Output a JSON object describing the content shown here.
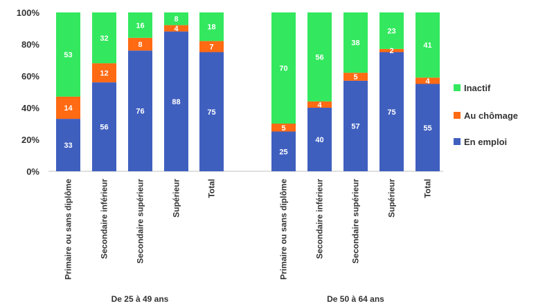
{
  "chart_data": {
    "type": "bar",
    "stacked": true,
    "normalized_percent": true,
    "groups": [
      {
        "label": "De 25 à 49 ans",
        "categories": [
          "Primaire ou sans diplôme",
          "Secondaire inférieur",
          "Secondaire supérieur",
          "Supérieur",
          "Total"
        ],
        "en_emploi": [
          33,
          56,
          76,
          88,
          75
        ],
        "au_chomage": [
          14,
          12,
          8,
          4,
          7
        ],
        "inactif": [
          53,
          32,
          16,
          8,
          18
        ]
      },
      {
        "label": "De 50 à 64 ans",
        "categories": [
          "Primaire ou sans diplôme",
          "Secondaire inférieur",
          "Secondaire supérieur",
          "Supérieur",
          "Total"
        ],
        "en_emploi": [
          25,
          40,
          57,
          75,
          55
        ],
        "au_chomage": [
          5,
          4,
          5,
          2,
          4
        ],
        "inactif": [
          70,
          56,
          38,
          23,
          41
        ]
      }
    ],
    "series": [
      {
        "key": "en_emploi",
        "name": "En emploi",
        "color": "#3f5fbf"
      },
      {
        "key": "au_chomage",
        "name": "Au chômage",
        "color": "#ff6a13"
      },
      {
        "key": "inactif",
        "name": "Inactif",
        "color": "#33e85e"
      }
    ],
    "y_ticks": [
      "0%",
      "20%",
      "40%",
      "60%",
      "80%",
      "100%"
    ],
    "ylim": [
      0,
      100
    ],
    "legend_position": "right",
    "grid": false
  }
}
